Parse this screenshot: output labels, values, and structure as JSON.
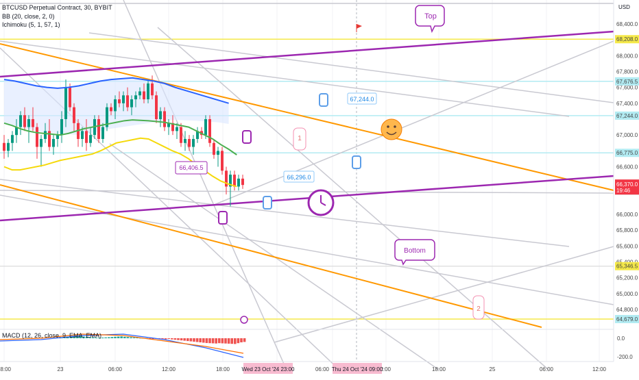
{
  "header": {
    "symbol": "BTCUSD Perpetual Contract, 30, BYBIT",
    "bb": "BB (20, close, 2, 0)",
    "ichimoku": "Ichimoku (5, 1, 57, 1)",
    "macd": "MACD (12, 26, close, 9, EMA, EMA)",
    "currency": "USD"
  },
  "chart_data": {
    "type": "candlestick",
    "price_axis": {
      "ticks": [
        "68,400.0",
        "68,000.0",
        "67,800.0",
        "67,600.0",
        "67,400.0",
        "67,000.0",
        "66,800.0",
        "66,600.0",
        "66,400.0",
        "66,000.0",
        "65,800.0",
        "65,600.0",
        "65,400.0",
        "65,200.0",
        "65,000.0",
        "64,800.0"
      ],
      "range": [
        64600,
        68600
      ]
    },
    "price_labels": [
      {
        "text": "68,208.0",
        "color": "#f5e94a"
      },
      {
        "text": "67,676.5",
        "color": "#b2ebf2"
      },
      {
        "text": "67,244.0",
        "color": "#b2ebf2"
      },
      {
        "text": "66,775.0",
        "color": "#b2ebf2"
      },
      {
        "text": "66,296.0",
        "color": "#e0e0e0"
      },
      {
        "text": "65,346.5",
        "color": "#f5e94a"
      },
      {
        "text": "64,679.0",
        "color": "#b2ebf2"
      }
    ],
    "last_price": {
      "text": "66,370.0",
      "countdown": "19:46",
      "color": "#f23645"
    },
    "macd_axis": [
      "0.0",
      "-200.0"
    ],
    "time_axis": [
      "18:00",
      "23",
      "06:00",
      "12:00",
      "18:00",
      "06:00",
      "12:00",
      "18:00",
      "25",
      "06:00",
      "12:00"
    ],
    "time_highlights": [
      "Wed 23 Oct '24  23:00",
      "Thu 24 Oct '24  09:00"
    ],
    "horizontal_levels": [
      68208.0,
      67676.5,
      67244.0,
      66775.0,
      65346.5,
      64679.0
    ],
    "candles": [
      {
        "o": 66900,
        "h": 67000,
        "l": 66700,
        "c": 66800
      },
      {
        "o": 66800,
        "h": 66950,
        "l": 66720,
        "c": 66900
      },
      {
        "o": 66900,
        "h": 67050,
        "l": 66800,
        "c": 67000
      },
      {
        "o": 67000,
        "h": 67200,
        "l": 66900,
        "c": 67100
      },
      {
        "o": 67100,
        "h": 67300,
        "l": 67000,
        "c": 67250
      },
      {
        "o": 67250,
        "h": 67350,
        "l": 67050,
        "c": 67100
      },
      {
        "o": 67100,
        "h": 67250,
        "l": 66900,
        "c": 67200
      },
      {
        "o": 67200,
        "h": 67350,
        "l": 67050,
        "c": 67100
      },
      {
        "o": 67100,
        "h": 67150,
        "l": 66700,
        "c": 66850
      },
      {
        "o": 66850,
        "h": 67000,
        "l": 66600,
        "c": 66950
      },
      {
        "o": 66950,
        "h": 67150,
        "l": 66900,
        "c": 67050
      },
      {
        "o": 67050,
        "h": 67200,
        "l": 66800,
        "c": 66850
      },
      {
        "o": 66850,
        "h": 67000,
        "l": 66750,
        "c": 66950
      },
      {
        "o": 66950,
        "h": 67050,
        "l": 66850,
        "c": 67000
      },
      {
        "o": 67000,
        "h": 67300,
        "l": 66900,
        "c": 67200
      },
      {
        "o": 67200,
        "h": 67700,
        "l": 67100,
        "c": 67600
      },
      {
        "o": 67600,
        "h": 67650,
        "l": 67300,
        "c": 67350
      },
      {
        "o": 67350,
        "h": 67400,
        "l": 67050,
        "c": 67150
      },
      {
        "o": 67150,
        "h": 67200,
        "l": 66850,
        "c": 66950
      },
      {
        "o": 66950,
        "h": 67100,
        "l": 66850,
        "c": 67050
      },
      {
        "o": 67050,
        "h": 67200,
        "l": 66800,
        "c": 66900
      },
      {
        "o": 66900,
        "h": 67100,
        "l": 66850,
        "c": 67000
      },
      {
        "o": 67000,
        "h": 67250,
        "l": 66950,
        "c": 67200
      },
      {
        "o": 67200,
        "h": 67250,
        "l": 66900,
        "c": 66950
      },
      {
        "o": 66950,
        "h": 67150,
        "l": 66900,
        "c": 67100
      },
      {
        "o": 67100,
        "h": 67400,
        "l": 67050,
        "c": 67350
      },
      {
        "o": 67350,
        "h": 67400,
        "l": 67250,
        "c": 67300
      },
      {
        "o": 67300,
        "h": 67500,
        "l": 67200,
        "c": 67450
      },
      {
        "o": 67450,
        "h": 67550,
        "l": 67350,
        "c": 67400
      },
      {
        "o": 67400,
        "h": 67550,
        "l": 67300,
        "c": 67500
      },
      {
        "o": 67500,
        "h": 67600,
        "l": 67300,
        "c": 67350
      },
      {
        "o": 67350,
        "h": 67500,
        "l": 67250,
        "c": 67450
      },
      {
        "o": 67450,
        "h": 67550,
        "l": 67350,
        "c": 67500
      },
      {
        "o": 67500,
        "h": 67600,
        "l": 67450,
        "c": 67550
      },
      {
        "o": 67550,
        "h": 67650,
        "l": 67400,
        "c": 67450
      },
      {
        "o": 67450,
        "h": 67700,
        "l": 67400,
        "c": 67650
      },
      {
        "o": 67650,
        "h": 67750,
        "l": 67450,
        "c": 67500
      },
      {
        "o": 67500,
        "h": 67550,
        "l": 67150,
        "c": 67200
      },
      {
        "o": 67200,
        "h": 67350,
        "l": 67100,
        "c": 67300
      },
      {
        "o": 67300,
        "h": 67350,
        "l": 67050,
        "c": 67100
      },
      {
        "o": 67100,
        "h": 67200,
        "l": 67000,
        "c": 67150
      },
      {
        "o": 67150,
        "h": 67250,
        "l": 67000,
        "c": 67050
      },
      {
        "o": 67050,
        "h": 67150,
        "l": 66950,
        "c": 67100
      },
      {
        "o": 67100,
        "h": 67150,
        "l": 66850,
        "c": 66900
      },
      {
        "o": 66900,
        "h": 67050,
        "l": 66800,
        "c": 66950
      },
      {
        "o": 66950,
        "h": 67000,
        "l": 66800,
        "c": 66850
      },
      {
        "o": 66850,
        "h": 67000,
        "l": 66750,
        "c": 66950
      },
      {
        "o": 66950,
        "h": 67100,
        "l": 66900,
        "c": 67050
      },
      {
        "o": 67050,
        "h": 67100,
        "l": 66950,
        "c": 67000
      },
      {
        "o": 67000,
        "h": 67250,
        "l": 66950,
        "c": 67200
      },
      {
        "o": 67200,
        "h": 67250,
        "l": 66850,
        "c": 66900
      },
      {
        "o": 66900,
        "h": 66950,
        "l": 66700,
        "c": 66750
      },
      {
        "o": 66750,
        "h": 66850,
        "l": 66600,
        "c": 66800
      },
      {
        "o": 66800,
        "h": 66850,
        "l": 66500,
        "c": 66550
      },
      {
        "o": 66550,
        "h": 66600,
        "l": 66250,
        "c": 66350
      },
      {
        "o": 66350,
        "h": 66550,
        "l": 66100,
        "c": 66500
      },
      {
        "o": 66500,
        "h": 66550,
        "l": 66300,
        "c": 66350
      },
      {
        "o": 66350,
        "h": 66500,
        "l": 66300,
        "c": 66450
      },
      {
        "o": 66450,
        "h": 66500,
        "l": 66320,
        "c": 66370
      }
    ],
    "indicators": {
      "bb_upper": [
        67700,
        67680,
        67650,
        67620,
        67600,
        67590,
        67600,
        67620,
        67650,
        67680,
        67700,
        67710,
        67720,
        67700,
        67680,
        67650,
        67600,
        67560,
        67520,
        67480,
        67440,
        67400
      ],
      "bb_basis": [
        67150,
        67120,
        67080,
        67050,
        67030,
        67020,
        67010,
        67000,
        67020,
        67050,
        67080,
        67100,
        67120,
        67140,
        67160,
        67180,
        67190,
        67185,
        67180,
        67170,
        67160,
        67140,
        67120,
        67100,
        67050,
        67000,
        66950,
        66880,
        66820,
        66750
      ],
      "bb_lower": [
        66600,
        66560,
        66560,
        66580,
        66600,
        66620,
        66650,
        66680,
        66700,
        66720,
        66740,
        66760,
        66800,
        66850,
        66900,
        66920,
        66940,
        66960,
        66950,
        66900,
        66850,
        66800,
        66760,
        66700,
        66620,
        66550,
        66480,
        66420,
        66380,
        66350
      ]
    },
    "macd_hist": [
      8,
      12,
      15,
      18,
      20,
      22,
      25,
      20,
      18,
      12,
      10,
      8,
      6,
      8,
      10,
      12,
      15,
      18,
      20,
      22,
      18,
      15,
      12,
      10,
      8,
      6,
      4,
      2,
      -2,
      -4,
      -6,
      -8,
      -10,
      -12,
      -8,
      -14,
      -18,
      -22,
      -26,
      -30,
      -34,
      -38,
      -42,
      -46,
      -50,
      -54,
      -58,
      -60,
      -62,
      -64,
      -60,
      -62,
      -64,
      -66,
      -68,
      -70,
      -60,
      -50,
      -45
    ],
    "annotations": [
      {
        "type": "callout",
        "text": "Top"
      },
      {
        "type": "callout",
        "text": "Bottom"
      },
      {
        "type": "price_note",
        "text": "67,244.0"
      },
      {
        "type": "price_note",
        "text": "66,406.5"
      },
      {
        "type": "price_note",
        "text": "66,296.0"
      },
      {
        "type": "note",
        "text": "1"
      },
      {
        "type": "note",
        "text": "2"
      }
    ],
    "colors": {
      "up": "#089981",
      "down": "#f23645",
      "bb_upper": "#2962ff",
      "bb_basis": "#4caf50",
      "bb_lower": "#f5d90a",
      "orange": "#ff9800",
      "purple": "#9c27b0",
      "grey": "#c9c9d1"
    }
  }
}
